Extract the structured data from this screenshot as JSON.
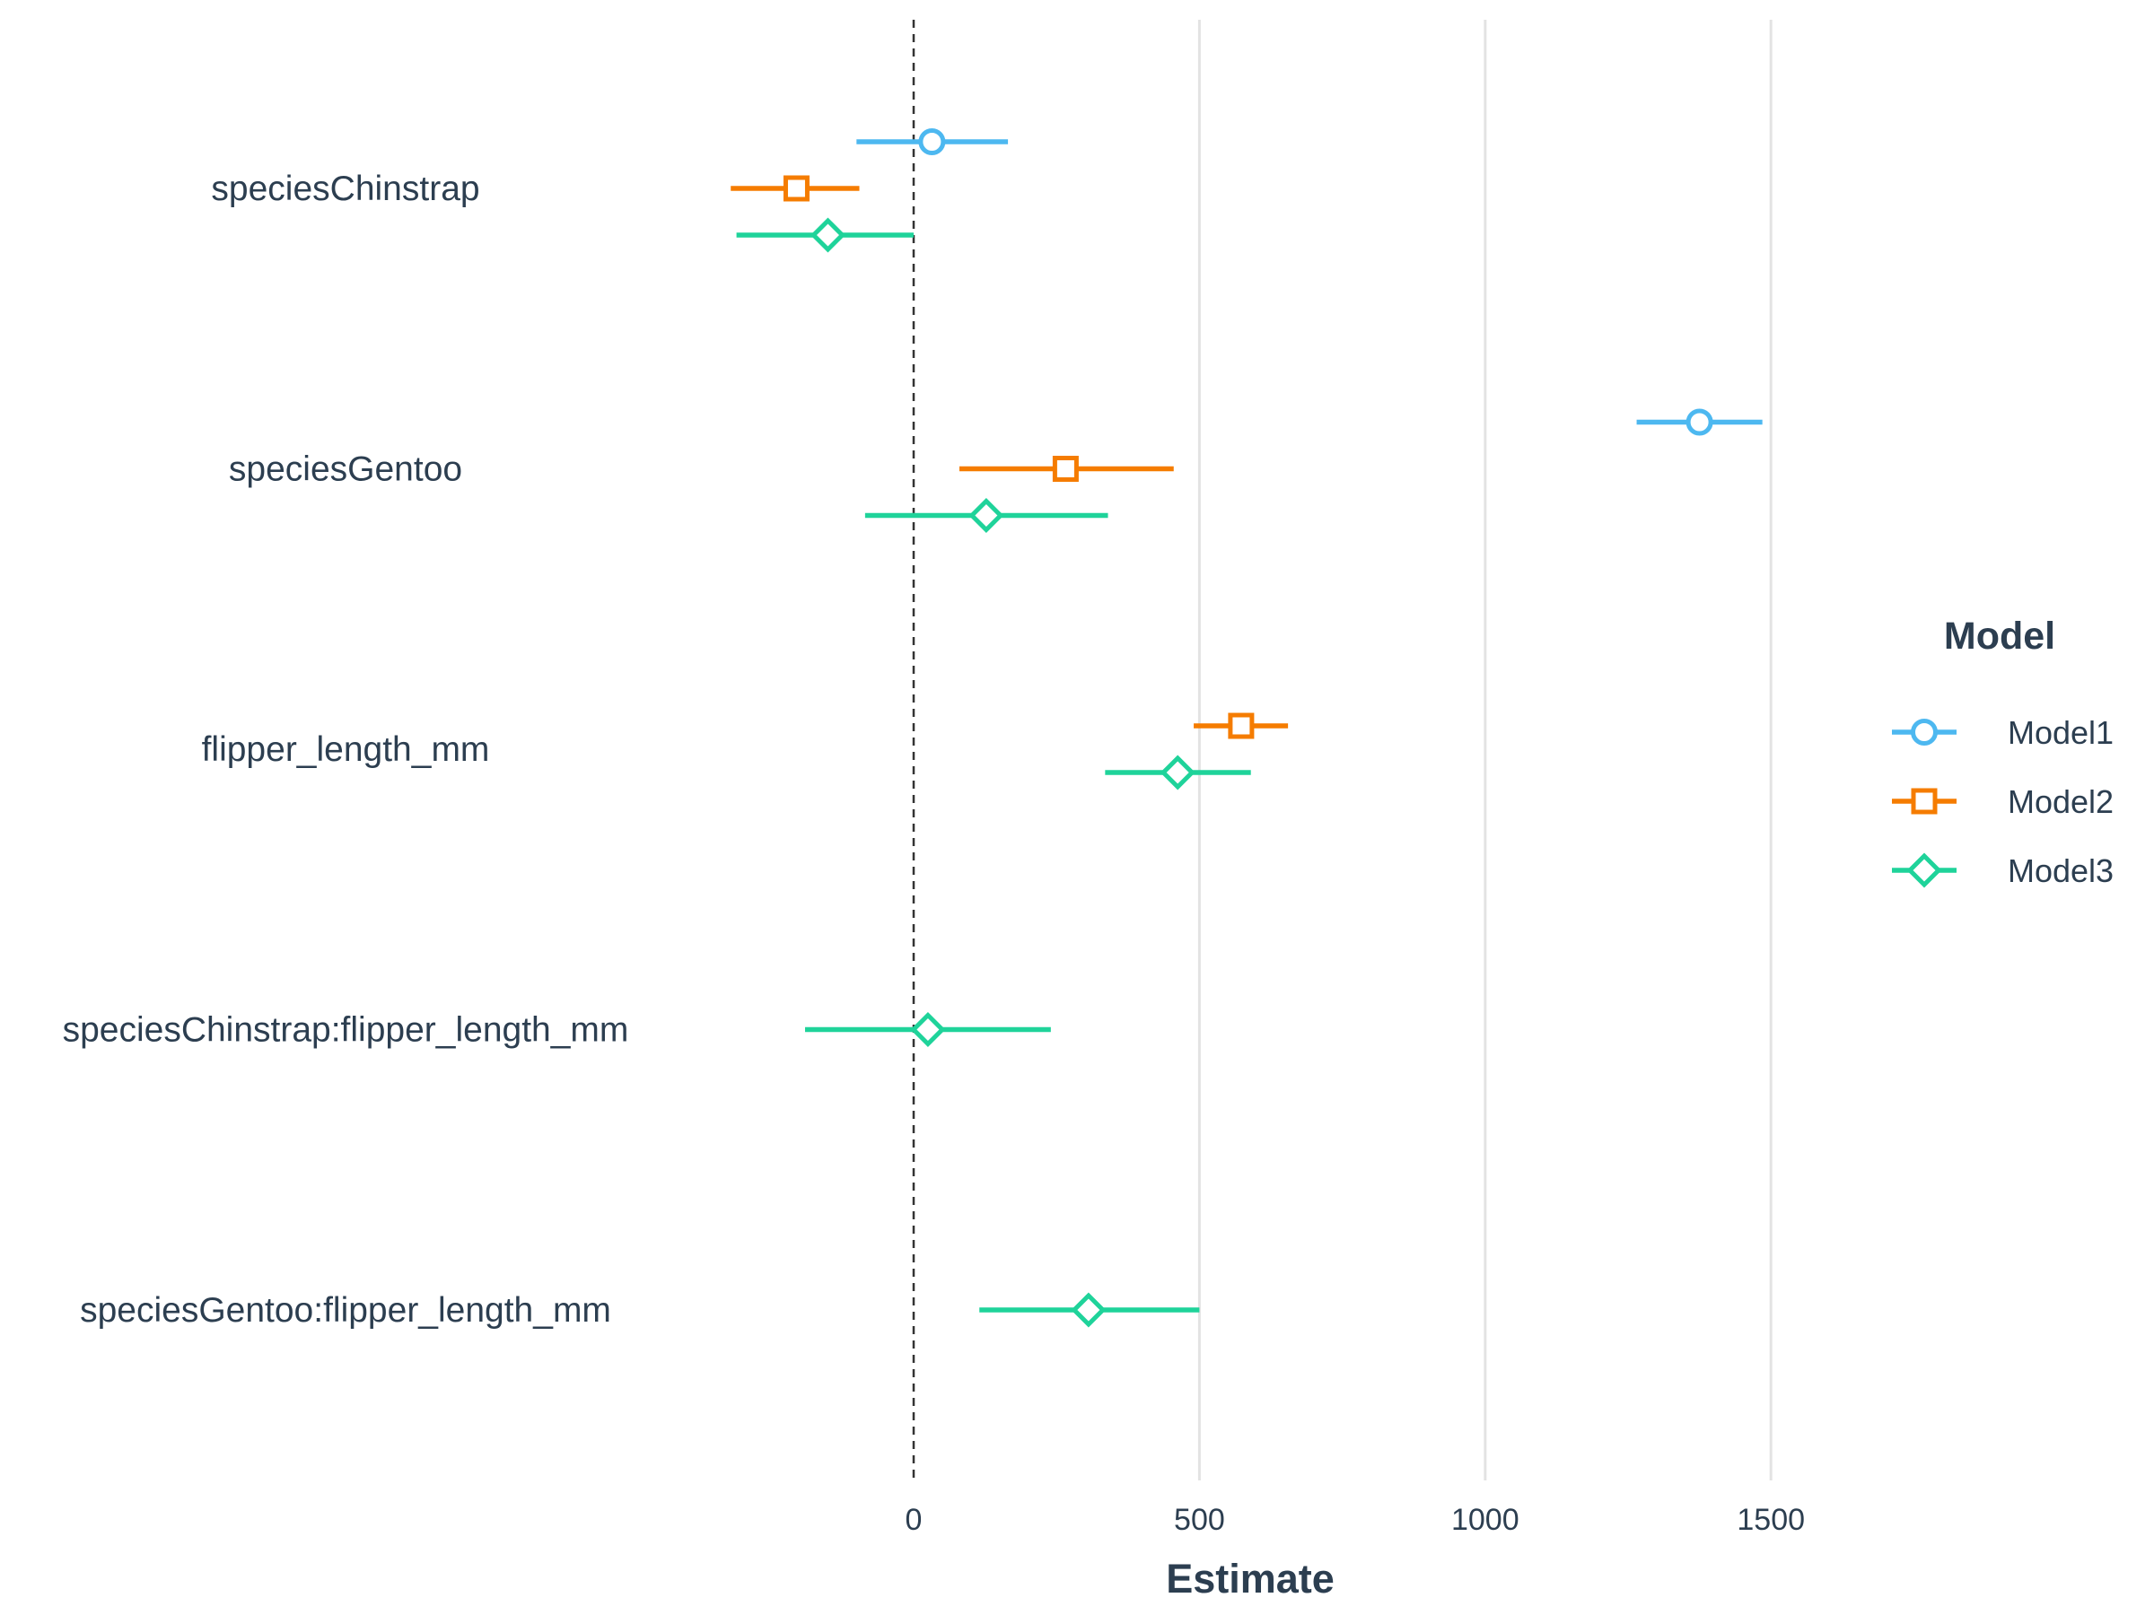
{
  "chart_data": {
    "type": "scatter",
    "subtype": "coefficient-plot",
    "xlabel": "Estimate",
    "xlim": [
      -400,
      1900
    ],
    "x_ticks": [
      0,
      500,
      1000,
      1500
    ],
    "reference_line": {
      "x": 0,
      "style": "dashed"
    },
    "grid": {
      "vertical": true,
      "horizontal": false
    },
    "legend": {
      "title": "Model",
      "placement": "right"
    },
    "terms": [
      "speciesChinstrap",
      "speciesGentoo",
      "flipper_length_mm",
      "speciesChinstrap:flipper_length_mm",
      "speciesGentoo:flipper_length_mm"
    ],
    "series": [
      {
        "name": "Model1",
        "color": "#4db8f0",
        "marker": "circle",
        "points": [
          {
            "term": "speciesChinstrap",
            "estimate": 32,
            "low": -100,
            "high": 165
          },
          {
            "term": "speciesGentoo",
            "estimate": 1375,
            "low": 1265,
            "high": 1485
          }
        ]
      },
      {
        "name": "Model2",
        "color": "#f57c00",
        "marker": "square",
        "points": [
          {
            "term": "speciesChinstrap",
            "estimate": -205,
            "low": -320,
            "high": -95
          },
          {
            "term": "speciesGentoo",
            "estimate": 266,
            "low": 80,
            "high": 455
          },
          {
            "term": "flipper_length_mm",
            "estimate": 573,
            "low": 490,
            "high": 655
          }
        ]
      },
      {
        "name": "Model3",
        "color": "#1fd39a",
        "marker": "diamond",
        "points": [
          {
            "term": "speciesChinstrap",
            "estimate": -150,
            "low": -310,
            "high": 0
          },
          {
            "term": "speciesGentoo",
            "estimate": 127,
            "low": -85,
            "high": 340
          },
          {
            "term": "flipper_length_mm",
            "estimate": 462,
            "low": 335,
            "high": 590
          },
          {
            "term": "speciesChinstrap:flipper_length_mm",
            "estimate": 25,
            "low": -190,
            "high": 240
          },
          {
            "term": "speciesGentoo:flipper_length_mm",
            "estimate": 306,
            "low": 115,
            "high": 500
          }
        ]
      }
    ]
  }
}
